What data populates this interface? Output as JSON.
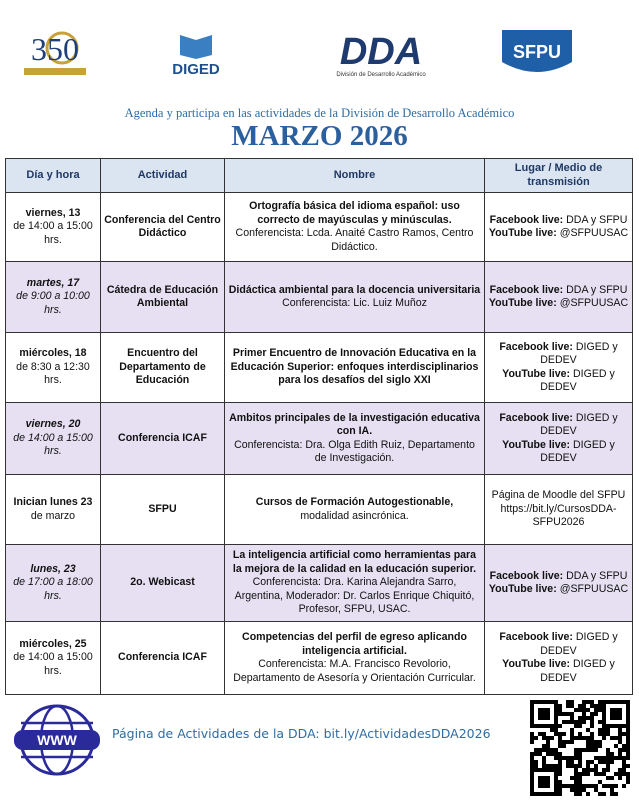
{
  "logos": {
    "anniversary": "350",
    "diged": "DIGED",
    "dda": "DDA",
    "dda_caption": "División de Desarrollo Académico",
    "sfpu": "SFPU"
  },
  "header": {
    "subtitle": "Agenda y participa en las actividades de la División de Desarrollo Académico",
    "title": "MARZO 2026"
  },
  "table": {
    "columns": [
      "Día y hora",
      "Actividad",
      "Nombre",
      "Lugar / Medio de transmisión"
    ],
    "rows": [
      {
        "highlight": false,
        "date": {
          "day": "viernes, 13",
          "time": "de 14:00 a 15:00 hrs."
        },
        "activity": "Conferencia del Centro Didáctico",
        "name": {
          "title": "Ortografía básica del idioma español: uso correcto de mayúsculas y minúsculas.",
          "detail": "Conferencista: Lcda. Anaité Castro Ramos, Centro Didáctico."
        },
        "place": [
          {
            "label": "Facebook live:",
            "text": "DDA y SFPU"
          },
          {
            "label": "YouTube live:",
            "text": "@SFPUUSAC"
          }
        ]
      },
      {
        "highlight": true,
        "date": {
          "day": "martes, 17",
          "time": "de 9:00 a 10:00 hrs."
        },
        "activity": "Cátedra de Educación Ambiental",
        "name": {
          "title": "Didáctica ambiental para la docencia universitaria",
          "detail": "Conferencista: Lic. Luiz Muñoz"
        },
        "place": [
          {
            "label": "Facebook live:",
            "text": "DDA y SFPU"
          },
          {
            "label": "YouTube live:",
            "text": "@SFPUUSAC"
          }
        ]
      },
      {
        "highlight": false,
        "date": {
          "day": "miércoles, 18",
          "time": "de 8:30 a 12:30 hrs."
        },
        "activity": "Encuentro del Departamento de Educación",
        "name": {
          "title": "Primer Encuentro de Innovación Educativa en la Educación Superior: enfoques interdisciplinarios para los desafíos del siglo XXI",
          "detail": ""
        },
        "place": [
          {
            "label": "Facebook live:",
            "text": "DIGED y DEDEV"
          },
          {
            "label": "YouTube live:",
            "text": "DIGED y DEDEV"
          }
        ]
      },
      {
        "highlight": true,
        "date": {
          "day": "viernes, 20",
          "time": "de 14:00 a 15:00 hrs."
        },
        "activity": "Conferencia ICAF",
        "name": {
          "title": "Ambitos principales de la investigación educativa con IA.",
          "detail": "Conferencista: Dra. Olga Edith Ruiz, Departamento de Investigación."
        },
        "place": [
          {
            "label": "Facebook live:",
            "text": "DIGED y DEDEV"
          },
          {
            "label": "YouTube live:",
            "text": "DIGED y DEDEV"
          }
        ]
      },
      {
        "highlight": false,
        "date": {
          "day": "Inician lunes 23",
          "time": "de marzo"
        },
        "activity": "SFPU",
        "name": {
          "title": "Cursos de Formación Autogestionable,",
          "detail": "modalidad asincrónica."
        },
        "place": [
          {
            "label": "",
            "text": "Página de Moodle del SFPU https://bit.ly/CursosDDA-SFPU2026"
          }
        ]
      },
      {
        "highlight": true,
        "date": {
          "day": "lunes, 23",
          "time": "de 17:00 a 18:00 hrs."
        },
        "activity": "2o. Webicast",
        "name": {
          "title": "La inteligencia artificial como herramientas para la mejora de la calidad en la educación superior.",
          "detail": "Conferencista: Dra. Karina Alejandra Sarro, Argentina, Moderador: Dr. Carlos Enrique Chiquitó, Profesor, SFPU, USAC."
        },
        "place": [
          {
            "label": "Facebook live:",
            "text": "DDA y SFPU"
          },
          {
            "label": "YouTube live:",
            "text": "@SFPUUSAC"
          }
        ]
      },
      {
        "highlight": false,
        "date": {
          "day": "miércoles, 25",
          "time": "de 14:00 a 15:00 hrs."
        },
        "activity": "Conferencia ICAF",
        "name": {
          "title": "Competencias del perfil de egreso aplicando inteligencia artificial.",
          "detail": "Conferencista: M.A. Francisco Revolorio, Departamento de Asesoría y Orientación Curricular."
        },
        "place": [
          {
            "label": "Facebook live:",
            "text": "DIGED y DEDEV"
          },
          {
            "label": "YouTube live:",
            "text": "DIGED y DEDEV"
          }
        ]
      }
    ]
  },
  "footer": {
    "globe": "WWW",
    "link": "Página de Actividades de la DDA: bit.ly/ActividadesDDA2026"
  }
}
